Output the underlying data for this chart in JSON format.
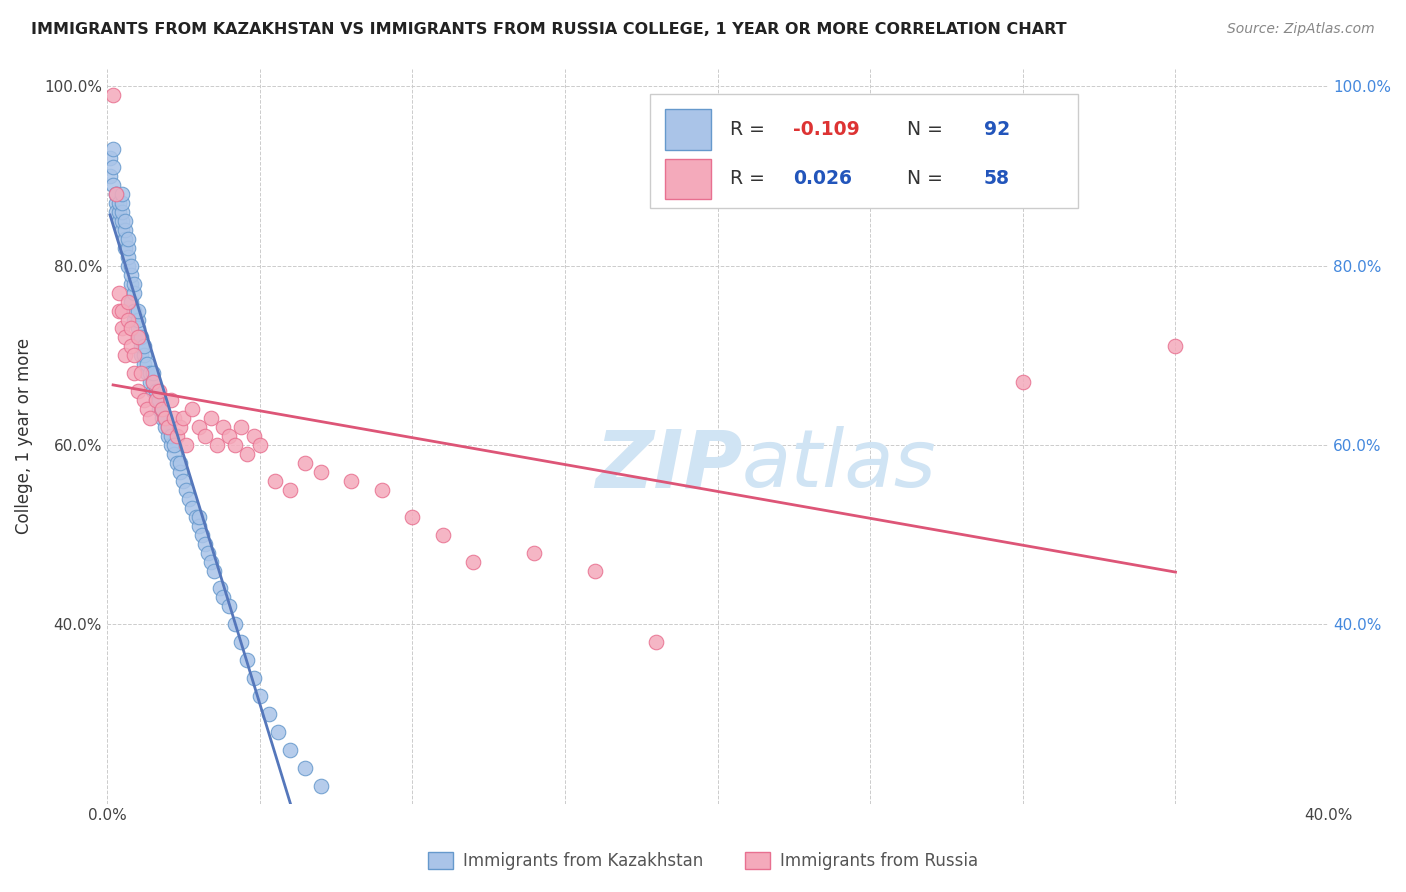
{
  "title": "IMMIGRANTS FROM KAZAKHSTAN VS IMMIGRANTS FROM RUSSIA COLLEGE, 1 YEAR OR MORE CORRELATION CHART",
  "source": "Source: ZipAtlas.com",
  "ylabel": "College, 1 year or more",
  "xlim": [
    0.0,
    0.4
  ],
  "ylim": [
    0.2,
    1.02
  ],
  "x_ticks": [
    0.0,
    0.05,
    0.1,
    0.15,
    0.2,
    0.25,
    0.3,
    0.35,
    0.4
  ],
  "x_tick_labels": [
    "0.0%",
    "",
    "",
    "",
    "",
    "",
    "",
    "",
    "40.0%"
  ],
  "y_ticks": [
    0.2,
    0.4,
    0.6,
    0.8,
    1.0
  ],
  "y_tick_labels_left": [
    "",
    "40.0%",
    "60.0%",
    "80.0%",
    "100.0%"
  ],
  "y_tick_labels_right": [
    "",
    "40.0%",
    "60.0%",
    "80.0%",
    "100.0%"
  ],
  "kaz_color": "#aac4e8",
  "kaz_edge_color": "#6699cc",
  "rus_color": "#f4aabb",
  "rus_edge_color": "#e87090",
  "kaz_line_color": "#5577bb",
  "rus_line_color": "#dd5577",
  "watermark_color": "#d0e4f4",
  "background_color": "#ffffff",
  "kaz_r": -0.109,
  "kaz_n": 92,
  "rus_r": 0.026,
  "rus_n": 58,
  "kaz_x": [
    0.001,
    0.001,
    0.002,
    0.002,
    0.002,
    0.003,
    0.003,
    0.003,
    0.003,
    0.004,
    0.004,
    0.004,
    0.005,
    0.005,
    0.005,
    0.005,
    0.005,
    0.006,
    0.006,
    0.006,
    0.006,
    0.007,
    0.007,
    0.007,
    0.007,
    0.008,
    0.008,
    0.008,
    0.008,
    0.009,
    0.009,
    0.009,
    0.009,
    0.01,
    0.01,
    0.01,
    0.01,
    0.011,
    0.011,
    0.011,
    0.012,
    0.012,
    0.012,
    0.013,
    0.013,
    0.014,
    0.014,
    0.015,
    0.015,
    0.015,
    0.016,
    0.016,
    0.017,
    0.017,
    0.018,
    0.018,
    0.019,
    0.019,
    0.02,
    0.02,
    0.021,
    0.021,
    0.022,
    0.022,
    0.023,
    0.024,
    0.024,
    0.025,
    0.026,
    0.027,
    0.028,
    0.029,
    0.03,
    0.03,
    0.031,
    0.032,
    0.033,
    0.034,
    0.035,
    0.037,
    0.038,
    0.04,
    0.042,
    0.044,
    0.046,
    0.048,
    0.05,
    0.053,
    0.056,
    0.06,
    0.065,
    0.07
  ],
  "kaz_y": [
    0.92,
    0.9,
    0.93,
    0.91,
    0.89,
    0.88,
    0.87,
    0.86,
    0.88,
    0.85,
    0.86,
    0.87,
    0.84,
    0.85,
    0.86,
    0.87,
    0.88,
    0.82,
    0.83,
    0.84,
    0.85,
    0.8,
    0.81,
    0.82,
    0.83,
    0.78,
    0.79,
    0.8,
    0.76,
    0.77,
    0.78,
    0.74,
    0.75,
    0.72,
    0.73,
    0.74,
    0.75,
    0.7,
    0.71,
    0.72,
    0.69,
    0.7,
    0.71,
    0.68,
    0.69,
    0.67,
    0.68,
    0.66,
    0.67,
    0.68,
    0.65,
    0.66,
    0.64,
    0.65,
    0.63,
    0.64,
    0.62,
    0.63,
    0.61,
    0.62,
    0.6,
    0.61,
    0.59,
    0.6,
    0.58,
    0.57,
    0.58,
    0.56,
    0.55,
    0.54,
    0.53,
    0.52,
    0.51,
    0.52,
    0.5,
    0.49,
    0.48,
    0.47,
    0.46,
    0.44,
    0.43,
    0.42,
    0.4,
    0.38,
    0.36,
    0.34,
    0.32,
    0.3,
    0.28,
    0.26,
    0.24,
    0.22
  ],
  "rus_x": [
    0.002,
    0.003,
    0.004,
    0.004,
    0.005,
    0.005,
    0.006,
    0.006,
    0.007,
    0.007,
    0.008,
    0.008,
    0.009,
    0.009,
    0.01,
    0.01,
    0.011,
    0.012,
    0.013,
    0.014,
    0.015,
    0.016,
    0.017,
    0.018,
    0.019,
    0.02,
    0.021,
    0.022,
    0.023,
    0.024,
    0.025,
    0.026,
    0.028,
    0.03,
    0.032,
    0.034,
    0.036,
    0.038,
    0.04,
    0.042,
    0.044,
    0.046,
    0.048,
    0.05,
    0.055,
    0.06,
    0.065,
    0.07,
    0.08,
    0.09,
    0.1,
    0.11,
    0.12,
    0.14,
    0.16,
    0.18,
    0.3,
    0.35
  ],
  "rus_y": [
    0.99,
    0.88,
    0.75,
    0.77,
    0.73,
    0.75,
    0.7,
    0.72,
    0.74,
    0.76,
    0.71,
    0.73,
    0.68,
    0.7,
    0.72,
    0.66,
    0.68,
    0.65,
    0.64,
    0.63,
    0.67,
    0.65,
    0.66,
    0.64,
    0.63,
    0.62,
    0.65,
    0.63,
    0.61,
    0.62,
    0.63,
    0.6,
    0.64,
    0.62,
    0.61,
    0.63,
    0.6,
    0.62,
    0.61,
    0.6,
    0.62,
    0.59,
    0.61,
    0.6,
    0.56,
    0.55,
    0.58,
    0.57,
    0.56,
    0.55,
    0.52,
    0.5,
    0.47,
    0.48,
    0.46,
    0.38,
    0.67,
    0.71
  ]
}
